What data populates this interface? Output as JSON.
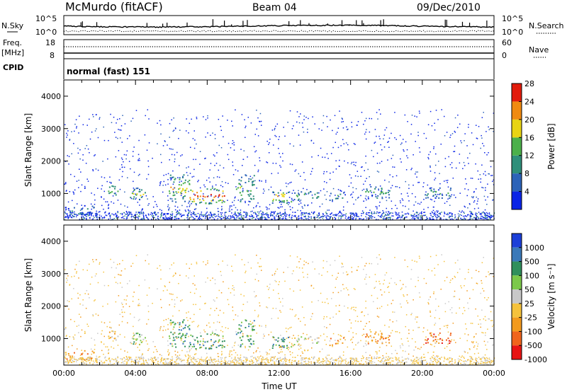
{
  "header": {
    "title": "McMurdo (fitACF)",
    "beam": "Beam 04",
    "date": "09/Dec/2010"
  },
  "noise_panel": {
    "left_label": "N.Sky",
    "right_label": "N.Search",
    "tick_top": "10^5",
    "tick_bottom": "10^0"
  },
  "freq_panel": {
    "left_label_1": "Freq.",
    "left_label_2": "[MHz]",
    "right_label": "Nave",
    "left_ticks": [
      "18",
      "8"
    ],
    "right_ticks": [
      "60",
      "0"
    ]
  },
  "cpid_panel": {
    "label": "CPID",
    "value": "normal (fast) 151"
  },
  "chart_data": [
    {
      "type": "heatmap",
      "ylabel": "Slant Range [km]",
      "xlabel": "",
      "yticks": [
        "1000",
        "2000",
        "3000",
        "4000"
      ],
      "ylim": [
        180,
        4500
      ],
      "colorbar": {
        "label": "Power [dB]",
        "ticks": [
          "4",
          "8",
          "12",
          "16",
          "20",
          "24",
          "28"
        ],
        "range": [
          0,
          30
        ],
        "colors": [
          "#0a24e6",
          "#2c63b8",
          "#2f8f7a",
          "#4bb04a",
          "#e8d414",
          "#f08a10",
          "#e21c0c"
        ]
      }
    },
    {
      "type": "heatmap",
      "ylabel": "Slant Range [km]",
      "xlabel": "Time UT",
      "yticks": [
        "1000",
        "2000",
        "3000",
        "4000"
      ],
      "ylim": [
        180,
        4500
      ],
      "xticks": [
        "00:00",
        "04:00",
        "08:00",
        "12:00",
        "16:00",
        "20:00",
        "00:00"
      ],
      "colorbar": {
        "label": "Velocity [m s⁻¹]",
        "ticks": [
          "1000",
          "500",
          "100",
          "50",
          "25",
          "-25",
          "-100",
          "-500",
          "-1000"
        ],
        "colors": [
          "#1b3fd8",
          "#3a79b9",
          "#2f8f5c",
          "#7cc84a",
          "#c8c8c8",
          "#f5c23c",
          "#f39a1e",
          "#f0641c",
          "#e81414"
        ]
      }
    }
  ]
}
